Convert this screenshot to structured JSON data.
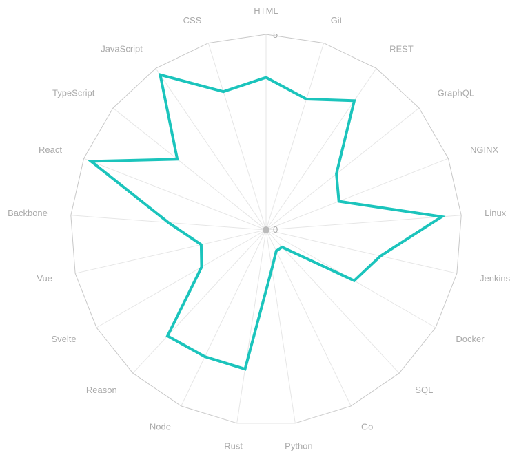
{
  "chart_data": {
    "type": "radar",
    "categories": [
      "HTML",
      "Git",
      "REST",
      "GraphQL",
      "NGINX",
      "Linux",
      "Jenkins",
      "Docker",
      "SQL",
      "Go",
      "Python",
      "Rust",
      "Node",
      "Reason",
      "Svelte",
      "Vue",
      "Backbone",
      "React",
      "TypeScript",
      "JavaScript",
      "CSS"
    ],
    "series": [
      {
        "values": [
          3.9,
          3.5,
          4.0,
          2.3,
          2.0,
          4.5,
          3.0,
          2.6,
          0.6,
          0.6,
          1.0,
          3.6,
          3.6,
          3.7,
          1.9,
          1.7,
          2.5,
          4.8,
          2.9,
          4.8,
          3.7
        ]
      }
    ],
    "ylim": [
      0,
      5
    ],
    "ticks": [
      "0",
      "5"
    ],
    "colors": {
      "series": "#1bc4bc",
      "grid": "#c8c8c8",
      "spoke": "#e6e6e6",
      "label": "#aaaaaa"
    }
  }
}
